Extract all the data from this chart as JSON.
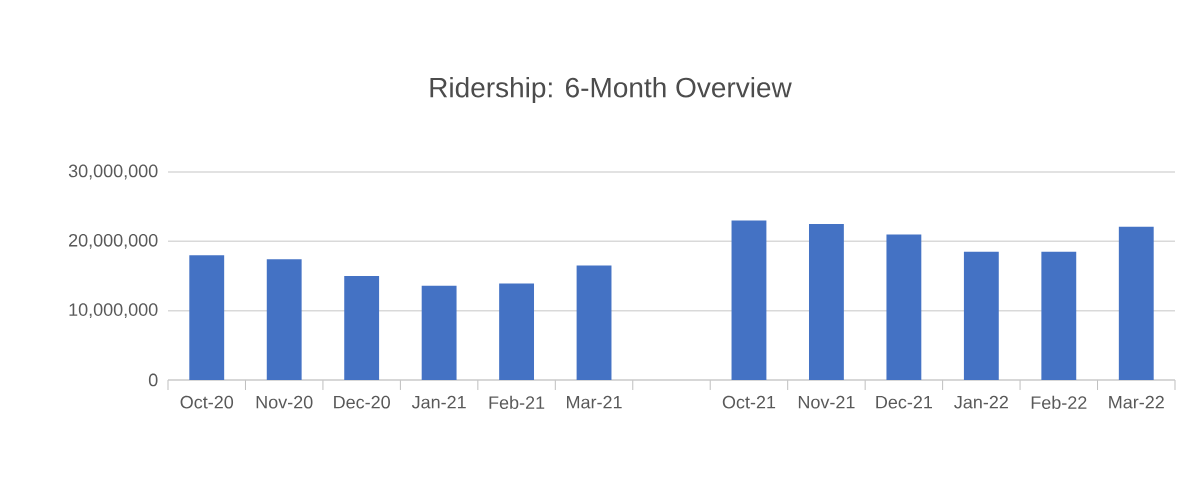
{
  "chart_data": {
    "type": "bar",
    "title": "Ridership: 6-Month Overview",
    "categories": [
      "Oct-20",
      "Nov-20",
      "Dec-20",
      "Jan-21",
      "Feb-21",
      "Mar-21",
      null,
      "Oct-21",
      "Nov-21",
      "Dec-21",
      "Jan-22",
      "Feb-22",
      "Mar-22"
    ],
    "values": [
      18000000,
      17400000,
      15000000,
      13600000,
      13900000,
      16500000,
      null,
      23000000,
      22500000,
      21000000,
      18500000,
      18500000,
      22100000
    ],
    "color": "#4472c4",
    "ylim": [
      0,
      30000000
    ],
    "yticks": [
      {
        "value": 0,
        "label": "0"
      },
      {
        "value": 10000000,
        "label": "10,000,000"
      },
      {
        "value": 20000000,
        "label": "20,000,000"
      },
      {
        "value": 30000000,
        "label": "30,000,000"
      }
    ],
    "grid": "y"
  }
}
